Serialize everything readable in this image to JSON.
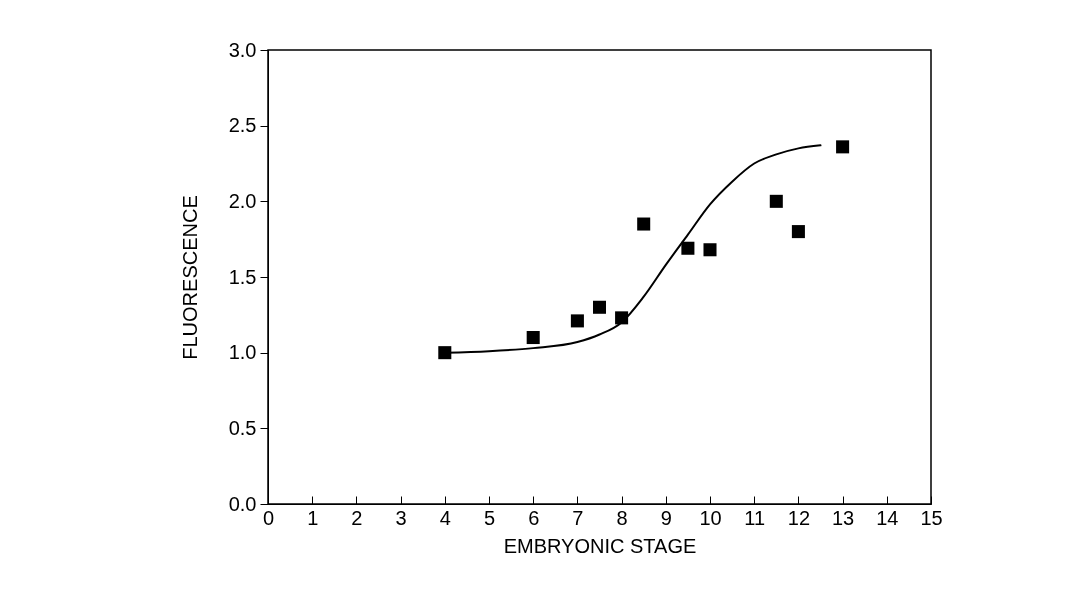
{
  "chart_data": {
    "type": "scatter",
    "xlabel": "EMBRYONIC STAGE",
    "ylabel": "FLUORESCENCE",
    "xlim": [
      0,
      15
    ],
    "xticks": [
      0,
      1,
      2,
      3,
      4,
      5,
      6,
      7,
      8,
      9,
      10,
      11,
      12,
      13,
      14,
      15
    ],
    "ylim": [
      0,
      3
    ],
    "yticks": [
      {
        "value": 0,
        "label": "0.0"
      },
      0.5,
      {
        "value": 1,
        "label": "1.0"
      },
      1.5,
      {
        "value": 2,
        "label": "2.0"
      },
      2.5,
      {
        "value": 3,
        "label": "3.0"
      }
    ],
    "grid": false,
    "series": [
      {
        "type": "scatter",
        "color": "#000000",
        "marker": "square",
        "x": [
          4,
          6,
          7,
          7.5,
          8,
          8.5,
          9.5,
          10,
          11.5,
          12,
          13
        ],
        "values": [
          1.0,
          1.1,
          1.21,
          1.3,
          1.23,
          1.85,
          1.69,
          1.68,
          2.0,
          1.8,
          2.36
        ]
      },
      {
        "type": "line",
        "color": "#000000",
        "marker": "none",
        "line_style": "solid",
        "x": [
          4,
          5,
          6,
          7,
          7.5,
          8,
          8.5,
          9,
          9.5,
          10,
          10.5,
          11,
          11.5,
          12,
          12.5
        ],
        "values": [
          1.0,
          1.01,
          1.03,
          1.07,
          1.12,
          1.2,
          1.37,
          1.58,
          1.78,
          1.98,
          2.13,
          2.25,
          2.31,
          2.35,
          2.37
        ]
      }
    ]
  }
}
